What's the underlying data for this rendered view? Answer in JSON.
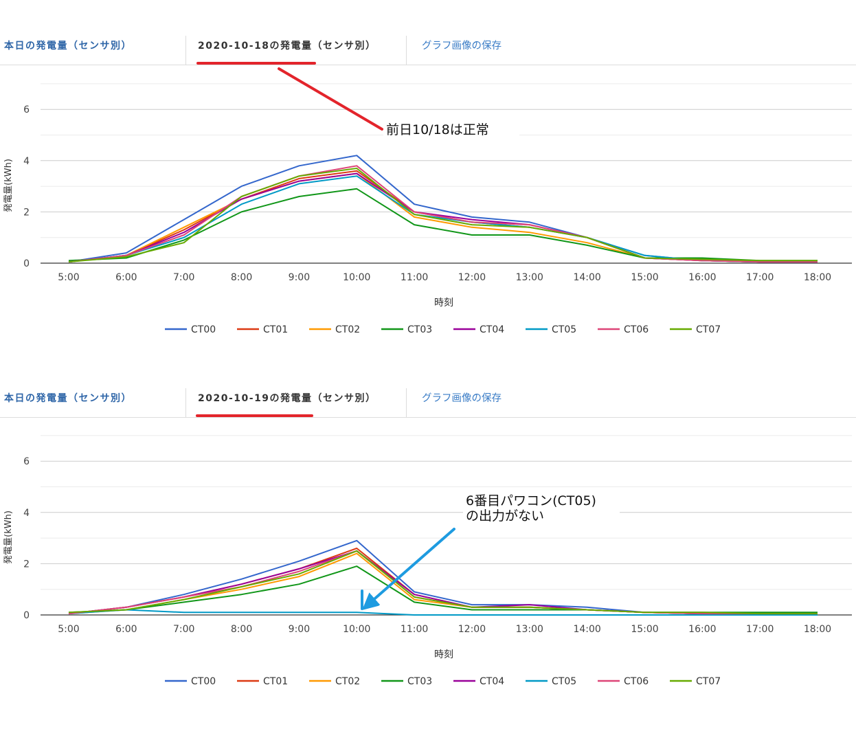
{
  "panels": [
    {
      "tabs": {
        "today": "本日の発電量（センサ別）",
        "date": "2020-10-18の発電量（センサ別）",
        "save": "グラフ画像の保存"
      },
      "annotation": "前日10/18は正常"
    },
    {
      "tabs": {
        "today": "本日の発電量（センサ別）",
        "date": "2020-10-19の発電量（センサ別）",
        "save": "グラフ画像の保存"
      },
      "annotation": "6番目パワコン(CT05)\nの出力がない"
    }
  ],
  "colors": {
    "accent_underline": "#e3242b",
    "arrow_top": "#e3242b",
    "arrow_bottom": "#1e9be0"
  },
  "chart_data": [
    {
      "type": "line",
      "xlabel": "時刻",
      "ylabel": "発電量(kWh)",
      "categories": [
        "5:00",
        "6:00",
        "7:00",
        "8:00",
        "9:00",
        "10:00",
        "11:00",
        "12:00",
        "13:00",
        "14:00",
        "15:00",
        "16:00",
        "17:00",
        "18:00"
      ],
      "ylim": [
        0,
        7
      ],
      "yticks": [
        0,
        2,
        4,
        6
      ],
      "grid": true,
      "legend_position": "bottom",
      "series": [
        {
          "name": "CT00",
          "color": "#3366cc",
          "values": [
            0.05,
            0.4,
            1.7,
            3.0,
            3.8,
            4.2,
            2.3,
            1.8,
            1.6,
            1.0,
            0.3,
            0.1,
            0.05,
            0.05
          ]
        },
        {
          "name": "CT01",
          "color": "#dc3912",
          "values": [
            0.05,
            0.3,
            1.3,
            2.5,
            3.3,
            3.6,
            2.0,
            1.6,
            1.4,
            1.0,
            0.2,
            0.1,
            0.05,
            0.05
          ]
        },
        {
          "name": "CT02",
          "color": "#ff9900",
          "values": [
            0.05,
            0.3,
            1.4,
            2.5,
            3.2,
            3.5,
            1.8,
            1.4,
            1.2,
            0.8,
            0.2,
            0.1,
            0.05,
            0.05
          ]
        },
        {
          "name": "CT03",
          "color": "#109618",
          "values": [
            0.1,
            0.2,
            0.9,
            2.0,
            2.6,
            2.9,
            1.5,
            1.1,
            1.1,
            0.7,
            0.2,
            0.2,
            0.1,
            0.1
          ]
        },
        {
          "name": "CT04",
          "color": "#990099",
          "values": [
            0.05,
            0.3,
            1.2,
            2.5,
            3.2,
            3.5,
            2.0,
            1.7,
            1.5,
            1.0,
            0.2,
            0.1,
            0.05,
            0.05
          ]
        },
        {
          "name": "CT05",
          "color": "#0099c6",
          "values": [
            0.05,
            0.3,
            1.0,
            2.3,
            3.1,
            3.4,
            1.9,
            1.6,
            1.4,
            1.0,
            0.3,
            0.1,
            0.05,
            0.05
          ]
        },
        {
          "name": "CT06",
          "color": "#dd4477",
          "values": [
            0.05,
            0.3,
            1.1,
            2.6,
            3.4,
            3.8,
            2.0,
            1.6,
            1.5,
            1.0,
            0.2,
            0.1,
            0.05,
            0.05
          ]
        },
        {
          "name": "CT07",
          "color": "#66aa00",
          "values": [
            0.05,
            0.25,
            0.8,
            2.6,
            3.4,
            3.7,
            1.9,
            1.5,
            1.4,
            1.0,
            0.2,
            0.15,
            0.1,
            0.1
          ]
        }
      ]
    },
    {
      "type": "line",
      "xlabel": "時刻",
      "ylabel": "発電量(kWh)",
      "categories": [
        "5:00",
        "6:00",
        "7:00",
        "8:00",
        "9:00",
        "10:00",
        "11:00",
        "12:00",
        "13:00",
        "14:00",
        "15:00",
        "16:00",
        "17:00",
        "18:00"
      ],
      "ylim": [
        0,
        7
      ],
      "yticks": [
        0,
        2,
        4,
        6
      ],
      "grid": true,
      "legend_position": "bottom",
      "series": [
        {
          "name": "CT00",
          "color": "#3366cc",
          "values": [
            0.05,
            0.3,
            0.8,
            1.4,
            2.1,
            2.9,
            0.9,
            0.4,
            0.4,
            0.3,
            0.1,
            0.05,
            0.05,
            0.05
          ]
        },
        {
          "name": "CT01",
          "color": "#dc3912",
          "values": [
            0.05,
            0.3,
            0.7,
            1.2,
            1.8,
            2.6,
            0.8,
            0.3,
            0.3,
            0.2,
            0.1,
            0.05,
            0.05,
            0.05
          ]
        },
        {
          "name": "CT02",
          "color": "#ff9900",
          "values": [
            0.05,
            0.2,
            0.6,
            1.0,
            1.5,
            2.4,
            0.6,
            0.3,
            0.3,
            0.2,
            0.1,
            0.05,
            0.05,
            0.05
          ]
        },
        {
          "name": "CT03",
          "color": "#109618",
          "values": [
            0.1,
            0.2,
            0.5,
            0.8,
            1.2,
            1.9,
            0.5,
            0.2,
            0.2,
            0.2,
            0.1,
            0.1,
            0.1,
            0.1
          ]
        },
        {
          "name": "CT04",
          "color": "#990099",
          "values": [
            0.05,
            0.3,
            0.7,
            1.2,
            1.8,
            2.5,
            0.8,
            0.3,
            0.4,
            0.2,
            0.1,
            0.05,
            0.05,
            0.05
          ]
        },
        {
          "name": "CT05",
          "color": "#0099c6",
          "values": [
            0.05,
            0.2,
            0.1,
            0.1,
            0.1,
            0.1,
            0.0,
            0.0,
            0.0,
            0.0,
            0.0,
            0.0,
            0.0,
            0.0
          ]
        },
        {
          "name": "CT06",
          "color": "#dd4477",
          "values": [
            0.05,
            0.3,
            0.7,
            1.1,
            1.7,
            2.5,
            0.7,
            0.3,
            0.3,
            0.2,
            0.1,
            0.05,
            0.05,
            0.05
          ]
        },
        {
          "name": "CT07",
          "color": "#66aa00",
          "values": [
            0.1,
            0.2,
            0.6,
            1.1,
            1.6,
            2.5,
            0.7,
            0.3,
            0.3,
            0.2,
            0.1,
            0.1,
            0.05,
            0.05
          ]
        }
      ]
    }
  ]
}
